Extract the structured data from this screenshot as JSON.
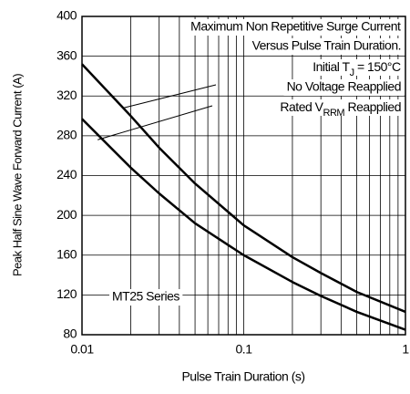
{
  "chart_data": {
    "type": "line",
    "xlabel": "Pulse Train Duration (s)",
    "ylabel": "Peak Half Sine Wave Forward Current (A)",
    "x": [
      0.01,
      0.02,
      0.03,
      0.05,
      0.1,
      0.2,
      0.3,
      0.5,
      1
    ],
    "series": [
      {
        "color": "#000000",
        "values": [
          352,
          300,
          268,
          232,
          190,
          158,
          142,
          123,
          103
        ]
      },
      {
        "color": "#000000",
        "values": [
          297,
          248,
          222,
          192,
          160,
          133,
          119,
          103,
          85
        ]
      }
    ],
    "xscale": "log",
    "xlim": [
      0.01,
      1
    ],
    "xticks": [
      0.01,
      0.1,
      1
    ],
    "xminor_ticks": [
      0.02,
      0.03,
      0.04,
      0.05,
      0.06,
      0.07,
      0.08,
      0.09,
      0.2,
      0.3,
      0.4,
      0.5,
      0.6,
      0.7,
      0.8,
      0.9
    ],
    "ylim": [
      80,
      400
    ],
    "yticks": [
      80,
      120,
      160,
      200,
      240,
      280,
      320,
      360,
      400
    ],
    "grid": true,
    "annotations": [
      "Maximum Non Repetitive Surge Current",
      "Versus Pulse Train Duration.",
      [
        "Initial T",
        "J",
        " = 150°C"
      ],
      "No Voltage Reapplied",
      [
        "Rated V",
        "RRM",
        " Reapplied"
      ],
      "MT25 Series"
    ]
  }
}
